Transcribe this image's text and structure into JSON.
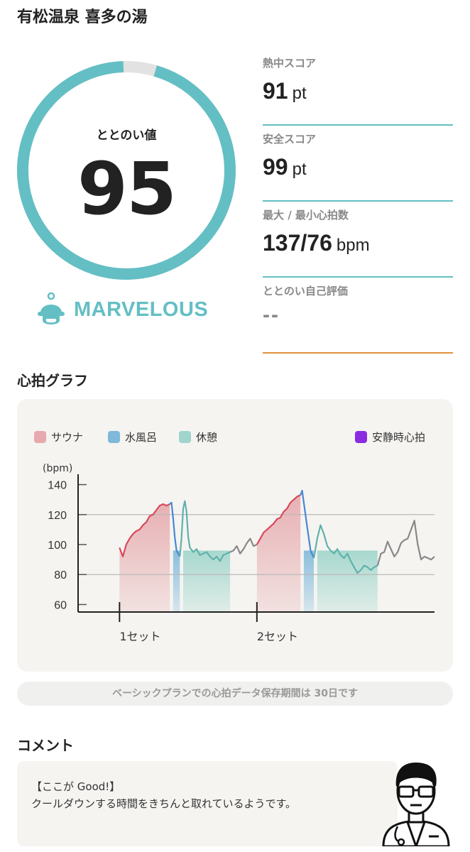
{
  "facility_name": "有松温泉 喜多の湯",
  "totonoi": {
    "label": "ととのい値",
    "value": 95,
    "max": 100,
    "grade": "MARVELOUS"
  },
  "scores": [
    {
      "label": "熱中スコア",
      "value": "91",
      "unit": "pt"
    },
    {
      "label": "安全スコア",
      "value": "99",
      "unit": "pt"
    },
    {
      "label": "最大 / 最小心拍数",
      "value": "137/76",
      "unit": "bpm"
    },
    {
      "label": "ととのい自己評価",
      "value": "--",
      "unit": ""
    }
  ],
  "heart_graph": {
    "title": "心拍グラフ",
    "legend": [
      {
        "label": "サウナ",
        "color": "#e6a9ad"
      },
      {
        "label": "水風呂",
        "color": "#7fb8da"
      },
      {
        "label": "休憩",
        "color": "#9fd5cb"
      },
      {
        "label": "安静時心拍",
        "color": "#8a2be2"
      }
    ]
  },
  "chart_data": {
    "type": "line",
    "ylabel": "(bpm)",
    "yticks": [
      140,
      120,
      100,
      80,
      60
    ],
    "ylim": [
      55,
      145
    ],
    "xlim": [
      0,
      100
    ],
    "set_labels": [
      {
        "x": 6,
        "label": "1セット"
      },
      {
        "x": 47,
        "label": "2セット"
      }
    ],
    "gridlines": [
      120,
      80
    ],
    "phases": [
      {
        "type": "sauna",
        "start": 6,
        "end": 21
      },
      {
        "type": "cold",
        "start": 22,
        "end": 24
      },
      {
        "type": "rest",
        "start": 25,
        "end": 39
      },
      {
        "type": "sauna",
        "start": 47,
        "end": 60
      },
      {
        "type": "cold",
        "start": 61,
        "end": 64
      },
      {
        "type": "rest",
        "start": 65,
        "end": 83
      }
    ],
    "series": [
      {
        "phase": "sauna",
        "color": "#d84a5c",
        "points": [
          [
            6,
            98
          ],
          [
            6.5,
            95
          ],
          [
            7,
            92
          ],
          [
            8,
            100
          ],
          [
            9,
            104
          ],
          [
            10,
            107
          ],
          [
            11,
            109
          ],
          [
            12,
            110
          ],
          [
            13,
            113
          ],
          [
            14,
            115
          ],
          [
            15,
            119
          ],
          [
            16,
            120
          ],
          [
            17,
            123
          ],
          [
            18,
            126
          ],
          [
            19,
            127
          ],
          [
            20,
            126
          ],
          [
            21,
            127
          ]
        ]
      },
      {
        "phase": "cold",
        "color": "#4a86d4",
        "points": [
          [
            21,
            127
          ],
          [
            21.5,
            128
          ],
          [
            22,
            118
          ],
          [
            22.5,
            105
          ],
          [
            23,
            96
          ],
          [
            24,
            92
          ]
        ]
      },
      {
        "phase": "rest",
        "color": "#5fb2ab",
        "points": [
          [
            24,
            92
          ],
          [
            24.5,
            104
          ],
          [
            25,
            124
          ],
          [
            25.5,
            129
          ],
          [
            26,
            122
          ],
          [
            26.5,
            105
          ],
          [
            27,
            98
          ],
          [
            28,
            95
          ],
          [
            29,
            97
          ],
          [
            30,
            93
          ],
          [
            31,
            94
          ],
          [
            32,
            95
          ],
          [
            33,
            92
          ],
          [
            34,
            90
          ],
          [
            35,
            92
          ],
          [
            36,
            89
          ],
          [
            37,
            93
          ],
          [
            38,
            94
          ],
          [
            39,
            95
          ]
        ]
      },
      {
        "phase": "other",
        "color": "#888888",
        "points": [
          [
            39,
            95
          ],
          [
            40,
            96
          ],
          [
            41,
            99
          ],
          [
            42,
            94
          ],
          [
            43,
            97
          ],
          [
            44,
            101
          ],
          [
            45,
            104
          ],
          [
            46,
            99
          ],
          [
            47,
            100
          ]
        ]
      },
      {
        "phase": "sauna",
        "color": "#d84a5c",
        "points": [
          [
            47,
            100
          ],
          [
            48,
            104
          ],
          [
            49,
            108
          ],
          [
            50,
            110
          ],
          [
            51,
            112
          ],
          [
            52,
            114
          ],
          [
            53,
            117
          ],
          [
            54,
            118
          ],
          [
            55,
            122
          ],
          [
            56,
            124
          ],
          [
            57,
            128
          ],
          [
            58,
            130
          ],
          [
            59,
            132
          ],
          [
            60,
            133
          ]
        ]
      },
      {
        "phase": "cold",
        "color": "#4a86d4",
        "points": [
          [
            60,
            133
          ],
          [
            60.5,
            136
          ],
          [
            61,
            128
          ],
          [
            62,
            112
          ],
          [
            63,
            96
          ],
          [
            64,
            91
          ]
        ]
      },
      {
        "phase": "rest",
        "color": "#5fb2ab",
        "points": [
          [
            64,
            91
          ],
          [
            65,
            104
          ],
          [
            66,
            113
          ],
          [
            67,
            107
          ],
          [
            68,
            99
          ],
          [
            69,
            96
          ],
          [
            70,
            94
          ],
          [
            71,
            97
          ],
          [
            72,
            93
          ],
          [
            73,
            91
          ],
          [
            74,
            94
          ],
          [
            75,
            89
          ],
          [
            76,
            85
          ],
          [
            77,
            81
          ],
          [
            78,
            83
          ],
          [
            79,
            86
          ],
          [
            80,
            85
          ],
          [
            81,
            83
          ],
          [
            82,
            85
          ],
          [
            83,
            86
          ]
        ]
      },
      {
        "phase": "other",
        "color": "#888888",
        "points": [
          [
            83,
            86
          ],
          [
            84,
            94
          ],
          [
            85,
            95
          ],
          [
            86,
            102
          ],
          [
            87,
            97
          ],
          [
            88,
            92
          ],
          [
            89,
            95
          ],
          [
            90,
            101
          ],
          [
            91,
            103
          ],
          [
            92,
            104
          ],
          [
            93,
            110
          ],
          [
            94,
            116
          ],
          [
            95,
            100
          ],
          [
            96,
            90
          ],
          [
            97,
            92
          ],
          [
            98,
            91
          ],
          [
            99,
            90
          ],
          [
            100,
            92
          ]
        ]
      }
    ]
  },
  "notice": "ベーシックプランでの心拍データ保存期間は 30日です",
  "comment": {
    "title": "コメント",
    "heading": "【ここが Good!】",
    "body": "クールダウンする時間をきちんと取れているようです。"
  }
}
